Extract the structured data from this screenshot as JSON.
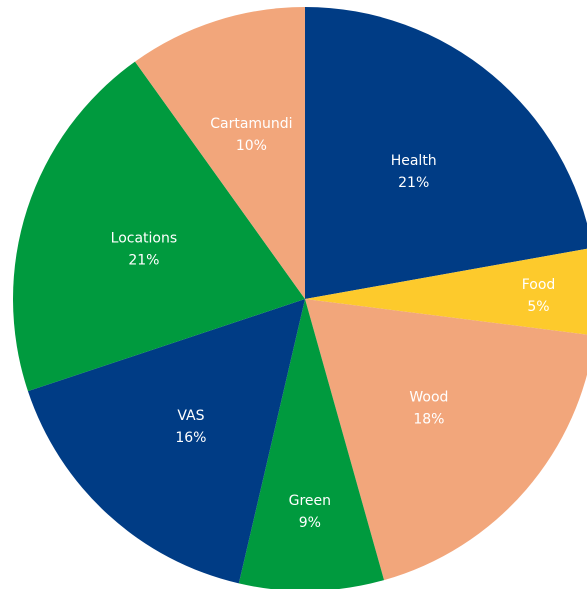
{
  "chart_data": {
    "type": "pie",
    "slices": [
      {
        "label": "Health",
        "percent_label": "21%",
        "value": 21,
        "color": "#003c85"
      },
      {
        "label": "Food",
        "percent_label": "5%",
        "value": 5,
        "color": "#fdca2c"
      },
      {
        "label": "Wood",
        "percent_label": "18%",
        "value": 18,
        "color": "#f2a67b"
      },
      {
        "label": "Green",
        "percent_label": "9%",
        "value": 9,
        "color": "#009a3e"
      },
      {
        "label": "VAS",
        "percent_label": "16%",
        "value": 16,
        "color": "#003c85"
      },
      {
        "label": "Locations",
        "percent_label": "21%",
        "value": 21,
        "color": "#009a3e"
      },
      {
        "label": "Cartamundi",
        "percent_label": "10%",
        "value": 10,
        "color": "#f2a67b"
      }
    ],
    "start": "12 o'clock",
    "direction": "clockwise",
    "legend": "none",
    "label_color": "#ffffff"
  }
}
